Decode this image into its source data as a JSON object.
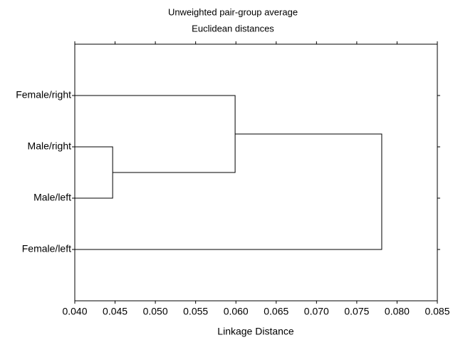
{
  "chart_data": {
    "type": "dendrogram",
    "title": "Unweighted pair-group average",
    "subtitle": "Euclidean distances",
    "xlabel": "Linkage Distance",
    "leaves": [
      "Female/right",
      "Male/right",
      "Male/left",
      "Female/left"
    ],
    "merges": [
      {
        "children": [
          1,
          2
        ],
        "distance": 0.0447
      },
      {
        "children": [
          0,
          4
        ],
        "distance": 0.0599
      },
      {
        "children": [
          5,
          3
        ],
        "distance": 0.0781
      }
    ],
    "color": "#000000",
    "xlim": [
      0.04,
      0.085
    ],
    "xticks": [
      {
        "value": 0.04,
        "label": "0.040"
      },
      {
        "value": 0.045,
        "label": "0.045"
      },
      {
        "value": 0.05,
        "label": "0.050"
      },
      {
        "value": 0.055,
        "label": "0.055"
      },
      {
        "value": 0.06,
        "label": "0.060"
      },
      {
        "value": 0.065,
        "label": "0.065"
      },
      {
        "value": 0.07,
        "label": "0.070"
      },
      {
        "value": 0.075,
        "label": "0.075"
      },
      {
        "value": 0.08,
        "label": "0.080"
      },
      {
        "value": 0.085,
        "label": "0.085"
      }
    ]
  }
}
